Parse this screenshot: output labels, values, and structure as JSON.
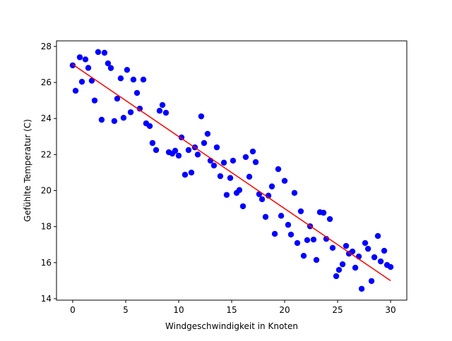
{
  "chart_data": {
    "type": "scatter",
    "xlabel": "Windgeschwindigkeit in Knoten",
    "ylabel": "Gefühlte Temperatur (C)",
    "xlim": [
      -1.53,
      31.53
    ],
    "ylim": [
      13.92,
      28.31
    ],
    "xticks": [
      0,
      5,
      10,
      15,
      20,
      25,
      30
    ],
    "yticks": [
      14,
      16,
      18,
      20,
      22,
      24,
      26,
      28
    ],
    "series": [
      {
        "type": "scatter",
        "color": "#0000ff",
        "x": [
          0,
          0.27,
          0.67,
          0.87,
          1.2,
          1.47,
          1.8,
          2.07,
          2.4,
          2.73,
          3.0,
          3.33,
          3.6,
          3.93,
          4.2,
          4.53,
          4.8,
          5.13,
          5.47,
          5.73,
          6.07,
          6.33,
          6.67,
          6.93,
          7.27,
          7.53,
          7.87,
          8.2,
          8.47,
          8.8,
          9.07,
          9.4,
          9.67,
          10.0,
          10.27,
          10.6,
          10.93,
          11.2,
          11.53,
          11.8,
          12.13,
          12.4,
          12.73,
          13.0,
          13.33,
          13.6,
          13.93,
          14.27,
          14.53,
          14.87,
          15.13,
          15.47,
          15.73,
          16.07,
          16.33,
          16.67,
          17.0,
          17.27,
          17.6,
          17.87,
          18.2,
          18.47,
          18.8,
          19.07,
          19.4,
          19.67,
          20.0,
          20.33,
          20.6,
          20.93,
          21.2,
          21.53,
          21.8,
          22.13,
          22.4,
          22.73,
          23.0,
          23.33,
          23.67,
          23.93,
          24.27,
          24.53,
          24.87,
          25.13,
          25.47,
          25.8,
          26.07,
          26.4,
          26.67,
          27.0,
          27.27,
          27.6,
          27.87,
          28.2,
          28.47,
          28.8,
          29.07,
          29.4,
          29.67,
          30
        ],
        "values": [
          26.95,
          25.54,
          27.4,
          26.04,
          27.28,
          26.81,
          26.1,
          25.0,
          27.69,
          23.93,
          27.65,
          27.06,
          26.8,
          23.86,
          25.1,
          26.23,
          24.04,
          26.7,
          24.35,
          26.16,
          25.42,
          24.55,
          26.16,
          23.73,
          23.58,
          22.64,
          22.25,
          24.43,
          24.75,
          24.32,
          22.13,
          22.05,
          22.21,
          21.94,
          22.95,
          20.88,
          22.25,
          21.0,
          22.4,
          22.0,
          24.12,
          22.64,
          23.15,
          21.66,
          21.39,
          22.4,
          20.8,
          21.55,
          19.76,
          20.7,
          21.66,
          19.87,
          20.03,
          19.13,
          21.86,
          20.77,
          22.17,
          21.58,
          19.8,
          19.52,
          18.54,
          19.72,
          20.23,
          17.6,
          21.19,
          18.6,
          20.54,
          18.1,
          17.56,
          19.87,
          17.09,
          18.85,
          16.38,
          17.25,
          18.02,
          17.28,
          16.15,
          18.8,
          18.77,
          17.32,
          18.42,
          16.82,
          15.25,
          15.6,
          15.91,
          16.93,
          16.5,
          16.62,
          15.72,
          16.34,
          14.55,
          17.09,
          16.77,
          14.98,
          16.3,
          17.48,
          16.07,
          16.66,
          15.87,
          15.76
        ]
      },
      {
        "type": "line",
        "color": "#ff0000",
        "x": [
          0,
          30
        ],
        "values": [
          27,
          15
        ]
      }
    ]
  }
}
